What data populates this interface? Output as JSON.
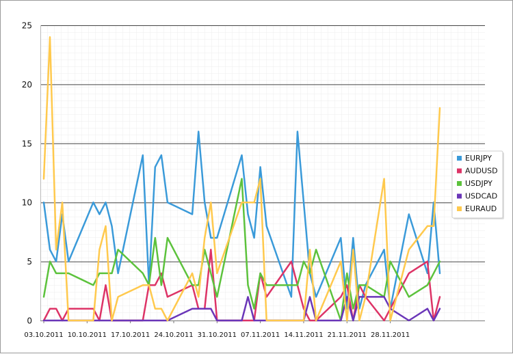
{
  "chart_data": {
    "type": "line",
    "title": "",
    "xlabel": "",
    "ylabel": "",
    "ylim": [
      0,
      25
    ],
    "y_ticks": [
      0,
      5,
      10,
      15,
      20,
      25
    ],
    "x_tick_labels": [
      "03.10.2011",
      "10.10.2011",
      "17.10.2011",
      "24.10.2011",
      "31.10.2011",
      "07.11.2011",
      "14.11.2011",
      "21.11.2011",
      "28.11.2011"
    ],
    "x_range_days": [
      0,
      66
    ],
    "grid": true,
    "legend_position": "right",
    "series": [
      {
        "name": "EURJPY",
        "color": "#3a9ad9",
        "points": [
          [
            0,
            10
          ],
          [
            1,
            6
          ],
          [
            2,
            5
          ],
          [
            3,
            9
          ],
          [
            4,
            5
          ],
          [
            8,
            10
          ],
          [
            9,
            9
          ],
          [
            10,
            10
          ],
          [
            11,
            8
          ],
          [
            12,
            4
          ],
          [
            16,
            14
          ],
          [
            17,
            3
          ],
          [
            18,
            13
          ],
          [
            19,
            14
          ],
          [
            20,
            10
          ],
          [
            24,
            9
          ],
          [
            25,
            16
          ],
          [
            26,
            10
          ],
          [
            27,
            7
          ],
          [
            28,
            7
          ],
          [
            32,
            14
          ],
          [
            33,
            9
          ],
          [
            34,
            7
          ],
          [
            35,
            13
          ],
          [
            36,
            8
          ],
          [
            40,
            2
          ],
          [
            41,
            16
          ],
          [
            42,
            10
          ],
          [
            43,
            4
          ],
          [
            44,
            2
          ],
          [
            48,
            7
          ],
          [
            49,
            1
          ],
          [
            50,
            7
          ],
          [
            51,
            1
          ],
          [
            52,
            3
          ],
          [
            55,
            6
          ],
          [
            56,
            1
          ],
          [
            59,
            9
          ],
          [
            62,
            4
          ],
          [
            63,
            10
          ],
          [
            64,
            4
          ]
        ]
      },
      {
        "name": "AUDUSD",
        "color": "#dd3366",
        "points": [
          [
            0,
            0
          ],
          [
            1,
            1
          ],
          [
            2,
            1
          ],
          [
            3,
            0
          ],
          [
            4,
            1
          ],
          [
            8,
            1
          ],
          [
            9,
            0
          ],
          [
            10,
            3
          ],
          [
            11,
            0
          ],
          [
            12,
            0
          ],
          [
            16,
            0
          ],
          [
            17,
            3
          ],
          [
            18,
            3
          ],
          [
            19,
            4
          ],
          [
            20,
            2
          ],
          [
            24,
            3
          ],
          [
            25,
            1
          ],
          [
            26,
            1
          ],
          [
            27,
            6
          ],
          [
            28,
            0
          ],
          [
            32,
            0
          ],
          [
            33,
            0
          ],
          [
            34,
            0
          ],
          [
            35,
            4
          ],
          [
            36,
            2
          ],
          [
            40,
            5
          ],
          [
            41,
            3
          ],
          [
            42,
            1
          ],
          [
            43,
            0
          ],
          [
            44,
            0
          ],
          [
            48,
            2
          ],
          [
            49,
            3
          ],
          [
            50,
            0
          ],
          [
            51,
            3
          ],
          [
            52,
            2
          ],
          [
            55,
            0
          ],
          [
            56,
            1
          ],
          [
            59,
            4
          ],
          [
            62,
            5
          ],
          [
            63,
            0
          ],
          [
            64,
            2
          ]
        ]
      },
      {
        "name": "USDJPY",
        "color": "#5cc23c",
        "points": [
          [
            0,
            2
          ],
          [
            1,
            5
          ],
          [
            2,
            4
          ],
          [
            3,
            4
          ],
          [
            4,
            4
          ],
          [
            8,
            3
          ],
          [
            9,
            4
          ],
          [
            10,
            4
          ],
          [
            11,
            4
          ],
          [
            12,
            6
          ],
          [
            16,
            4
          ],
          [
            17,
            3
          ],
          [
            18,
            7
          ],
          [
            19,
            3
          ],
          [
            20,
            7
          ],
          [
            24,
            3
          ],
          [
            25,
            3
          ],
          [
            26,
            6
          ],
          [
            27,
            4
          ],
          [
            28,
            2
          ],
          [
            32,
            12
          ],
          [
            33,
            3
          ],
          [
            34,
            1
          ],
          [
            35,
            4
          ],
          [
            36,
            3
          ],
          [
            40,
            3
          ],
          [
            41,
            3
          ],
          [
            42,
            5
          ],
          [
            43,
            4
          ],
          [
            44,
            6
          ],
          [
            48,
            0
          ],
          [
            49,
            4
          ],
          [
            50,
            1
          ],
          [
            51,
            3
          ],
          [
            52,
            3
          ],
          [
            55,
            2
          ],
          [
            56,
            5
          ],
          [
            59,
            2
          ],
          [
            62,
            3
          ],
          [
            63,
            4
          ],
          [
            64,
            5
          ]
        ]
      },
      {
        "name": "USDCAD",
        "color": "#6a36b8",
        "points": [
          [
            0,
            0
          ],
          [
            1,
            0
          ],
          [
            2,
            0
          ],
          [
            3,
            0
          ],
          [
            4,
            0
          ],
          [
            8,
            0
          ],
          [
            9,
            0
          ],
          [
            10,
            0
          ],
          [
            11,
            0
          ],
          [
            12,
            0
          ],
          [
            16,
            0
          ],
          [
            17,
            0
          ],
          [
            18,
            0
          ],
          [
            19,
            0
          ],
          [
            20,
            0
          ],
          [
            24,
            1
          ],
          [
            25,
            1
          ],
          [
            26,
            1
          ],
          [
            27,
            1
          ],
          [
            28,
            0
          ],
          [
            32,
            0
          ],
          [
            33,
            2
          ],
          [
            34,
            0
          ],
          [
            35,
            0
          ],
          [
            36,
            0
          ],
          [
            40,
            0
          ],
          [
            41,
            0
          ],
          [
            42,
            0
          ],
          [
            43,
            2
          ],
          [
            44,
            0
          ],
          [
            48,
            0
          ],
          [
            49,
            2
          ],
          [
            50,
            0
          ],
          [
            51,
            2
          ],
          [
            52,
            2
          ],
          [
            55,
            2
          ],
          [
            56,
            1
          ],
          [
            59,
            0
          ],
          [
            62,
            1
          ],
          [
            63,
            0
          ],
          [
            64,
            1
          ]
        ]
      },
      {
        "name": "EURAUD",
        "color": "#ffc94d",
        "points": [
          [
            0,
            12
          ],
          [
            1,
            24
          ],
          [
            2,
            6
          ],
          [
            3,
            10
          ],
          [
            4,
            0
          ],
          [
            8,
            0
          ],
          [
            9,
            6
          ],
          [
            10,
            8
          ],
          [
            11,
            0
          ],
          [
            12,
            2
          ],
          [
            16,
            3
          ],
          [
            17,
            3
          ],
          [
            18,
            1
          ],
          [
            19,
            1
          ],
          [
            20,
            0
          ],
          [
            24,
            4
          ],
          [
            25,
            2
          ],
          [
            26,
            7
          ],
          [
            27,
            10
          ],
          [
            28,
            4
          ],
          [
            32,
            10
          ],
          [
            33,
            10
          ],
          [
            34,
            10
          ],
          [
            35,
            12
          ],
          [
            36,
            0
          ],
          [
            40,
            0
          ],
          [
            41,
            0
          ],
          [
            42,
            0
          ],
          [
            43,
            6
          ],
          [
            44,
            0
          ],
          [
            48,
            5
          ],
          [
            49,
            0
          ],
          [
            50,
            6
          ],
          [
            51,
            0
          ],
          [
            52,
            2
          ],
          [
            55,
            12
          ],
          [
            56,
            0
          ],
          [
            59,
            6
          ],
          [
            62,
            8
          ],
          [
            63,
            8
          ],
          [
            64,
            18
          ]
        ]
      }
    ]
  }
}
